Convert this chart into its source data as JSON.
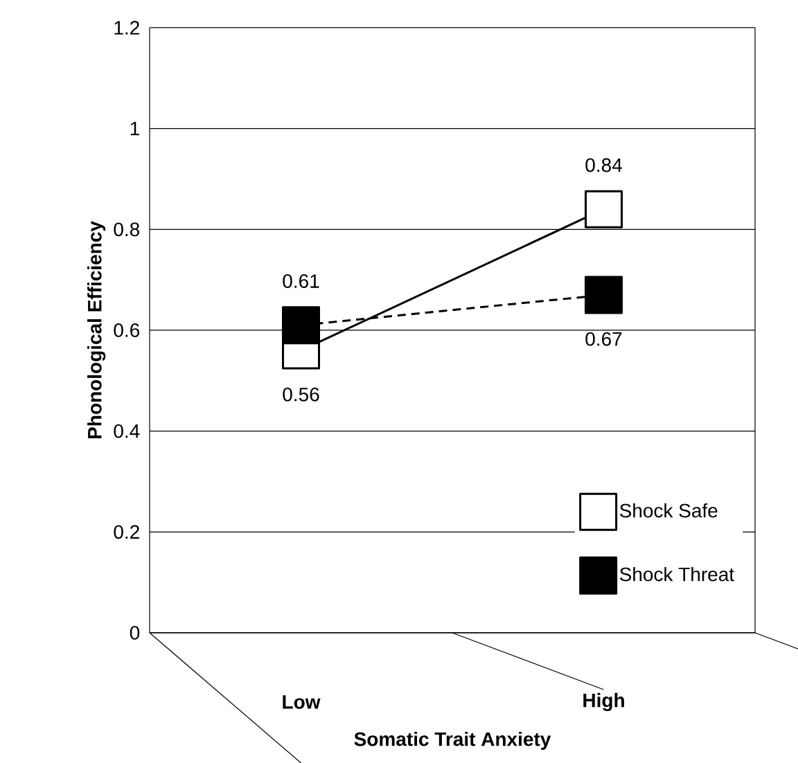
{
  "chart_data": {
    "type": "line",
    "xlabel": "Somatic Trait Anxiety",
    "ylabel": "Phonological Efficiency",
    "categories": [
      "Low",
      "High"
    ],
    "series": [
      {
        "name": "Shock Safe",
        "color": "#000000",
        "values": [
          0.56,
          0.84
        ],
        "line_style": "solid"
      },
      {
        "name": "Shock Threat",
        "color": "#000000",
        "values": [
          0.61,
          0.67
        ],
        "line_style": "dashed"
      }
    ],
    "ylim": [
      0,
      1.2
    ],
    "yticks": [
      0,
      0.2,
      0.4,
      0.6,
      0.8,
      1,
      1.2
    ],
    "grid": "y",
    "legend": "bottom right",
    "marker": "square",
    "data_labels": true
  }
}
